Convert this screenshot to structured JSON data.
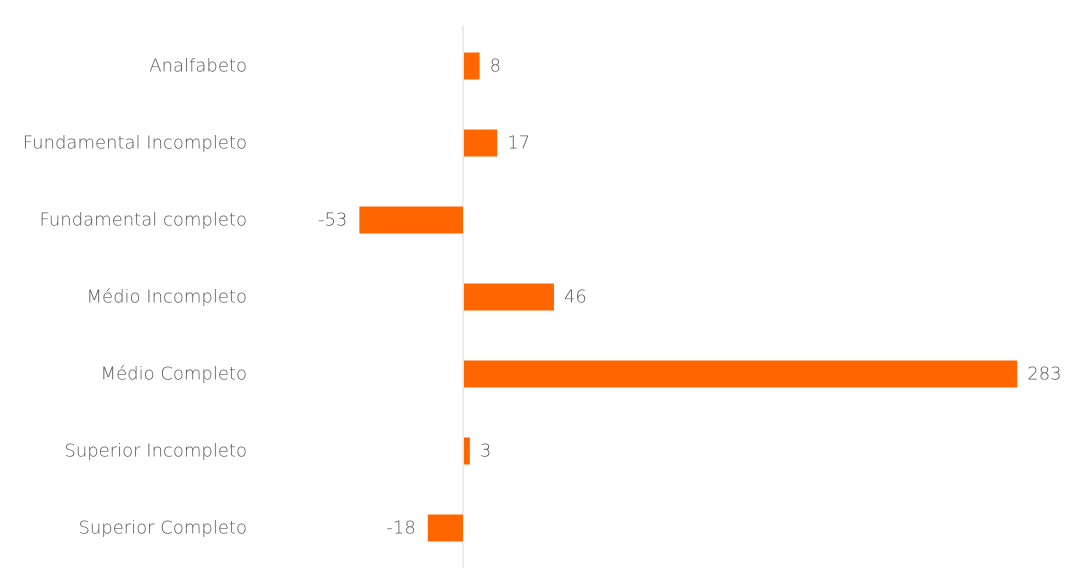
{
  "chart_data": {
    "type": "bar",
    "orientation": "horizontal",
    "categories": [
      "Analfabeto",
      "Fundamental Incompleto",
      "Fundamental completo",
      "Médio Incompleto",
      "Médio Completo",
      "Superior Incompleto",
      "Superior Completo"
    ],
    "values": [
      8,
      17,
      -53,
      46,
      283,
      3,
      -18
    ],
    "data_labels": [
      "8",
      "17",
      "-53",
      "46",
      "283",
      "3",
      "-18"
    ],
    "title": "",
    "xlabel": "",
    "ylabel": "",
    "xlim": [
      -60,
      290
    ],
    "grid": false,
    "legend": "none",
    "colors": {
      "bar": "#ff6600",
      "zero_line": "#d9d9d9",
      "text": "#595959"
    }
  }
}
